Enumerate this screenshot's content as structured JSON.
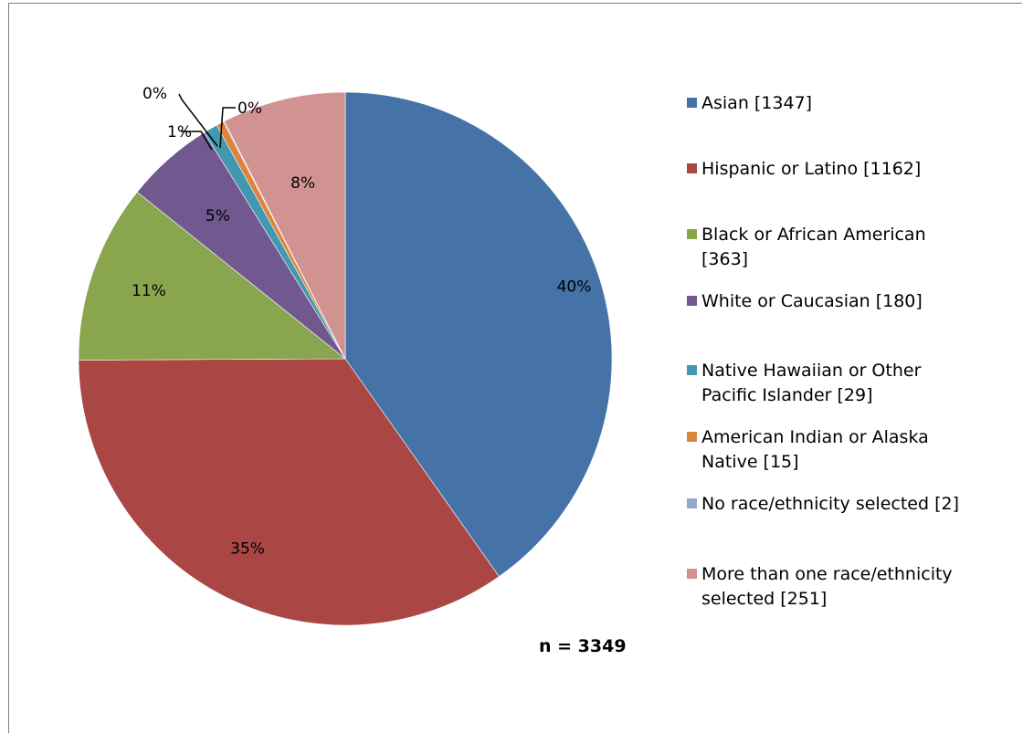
{
  "chart_data": {
    "type": "pie",
    "title": "",
    "slices": [
      {
        "label": "Asian [1347]",
        "value": 1347,
        "percent_label": "40%",
        "color": "#4572a7"
      },
      {
        "label": "Hispanic or Latino [1162]",
        "value": 1162,
        "percent_label": "35%",
        "color": "#aa4643"
      },
      {
        "label": "Black or African American [363]",
        "value": 363,
        "percent_label": "11%",
        "color": "#89a54e"
      },
      {
        "label": "White or Caucasian [180]",
        "value": 180,
        "percent_label": "5%",
        "color": "#71588f"
      },
      {
        "label": "Native Hawaiian or Other Pacific Islander [29]",
        "value": 29,
        "percent_label": "1%",
        "color": "#4198af"
      },
      {
        "label": "American Indian or Alaska Native [15]",
        "value": 15,
        "percent_label": "0%",
        "color": "#db843d"
      },
      {
        "label": "No race/ethnicity selected [2]",
        "value": 2,
        "percent_label": "0%",
        "color": "#93a9cf"
      },
      {
        "label": "More than one race/ethnicity selected [251]",
        "value": 251,
        "percent_label": "8%",
        "color": "#d19392"
      }
    ],
    "legend_placement": "right",
    "total_label": "n = 3349"
  }
}
